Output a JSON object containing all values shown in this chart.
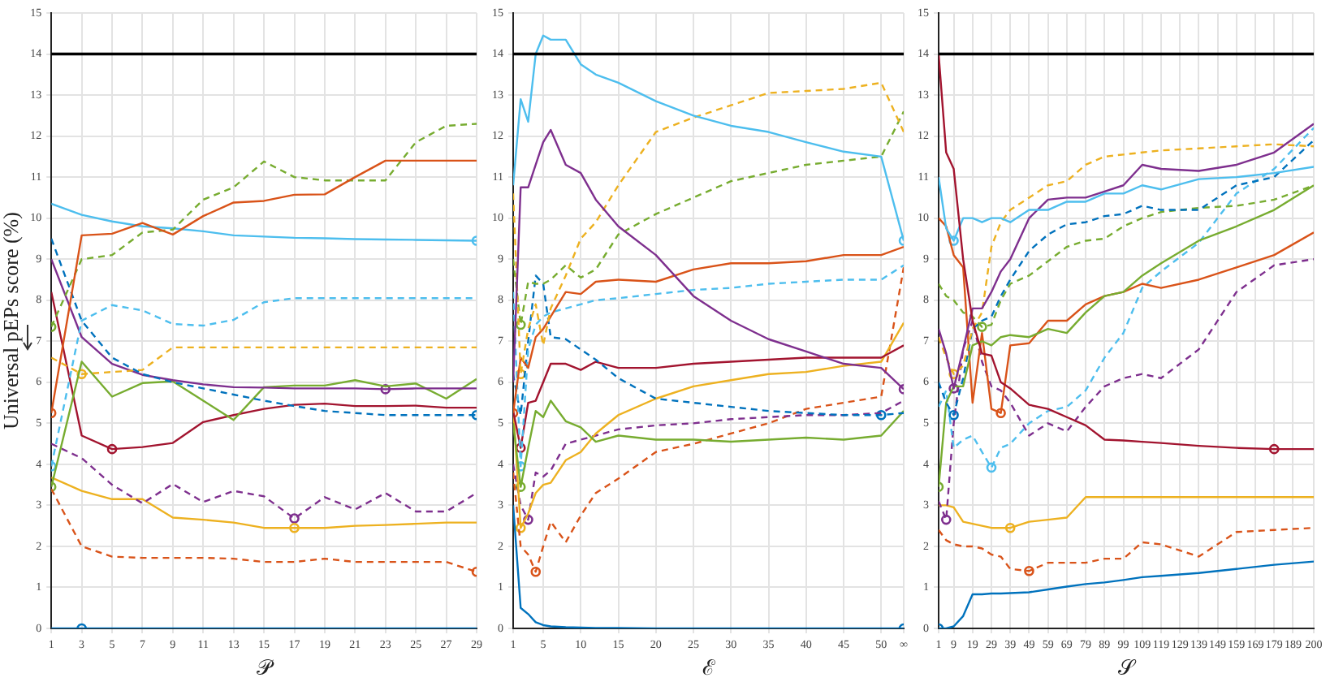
{
  "chart_data": [
    {
      "type": "line",
      "xlabel": "𝒫",
      "ylabel": "Universal pEPs score (%)",
      "xlim": [
        1,
        29
      ],
      "xticks": [
        1,
        3,
        5,
        7,
        9,
        11,
        13,
        15,
        17,
        19,
        21,
        23,
        25,
        27,
        29
      ],
      "ylim": [
        0,
        15
      ],
      "yticks": [
        0,
        1,
        2,
        3,
        4,
        5,
        6,
        7,
        8,
        9,
        10,
        11,
        12,
        13,
        14,
        15
      ],
      "grid": true,
      "legend": false,
      "ref_lines": [
        {
          "axis": "y",
          "value": 14,
          "color": "#000000"
        }
      ],
      "series": [
        {
          "color": "#0072bd",
          "line_style": "solid",
          "x": [
            1,
            3,
            5,
            7,
            9,
            11,
            13,
            15,
            17,
            19,
            21,
            23,
            25,
            27,
            29
          ],
          "values": [
            0,
            0,
            0,
            0,
            0,
            0,
            0,
            0,
            0,
            0,
            0,
            0,
            0,
            0,
            0
          ]
        },
        {
          "color": "#d95319",
          "line_style": "solid",
          "x": [
            1,
            3,
            5,
            7,
            9,
            11,
            13,
            15,
            17,
            19,
            21,
            23,
            25,
            27,
            29
          ],
          "values": [
            5.25,
            9.58,
            9.62,
            9.88,
            9.6,
            10.05,
            10.38,
            10.42,
            10.57,
            10.58,
            11,
            11.4,
            11.4,
            11.4,
            11.4
          ]
        },
        {
          "color": "#77ac30",
          "line_style": "dashed",
          "x": [
            1,
            3,
            5,
            7,
            9,
            11,
            13,
            15,
            17,
            19,
            21,
            23,
            25,
            27,
            29
          ],
          "values": [
            7.35,
            9.0,
            9.1,
            9.65,
            9.72,
            10.45,
            10.75,
            11.38,
            11.0,
            10.92,
            10.92,
            10.92,
            11.85,
            12.25,
            12.3
          ]
        },
        {
          "color": "#4dbeee",
          "line_style": "solid",
          "x": [
            1,
            3,
            5,
            7,
            9,
            11,
            13,
            15,
            17,
            19,
            21,
            23,
            25,
            27,
            29
          ],
          "values": [
            10.35,
            10.08,
            9.92,
            9.8,
            9.75,
            9.68,
            9.58,
            9.55,
            9.52,
            9.51,
            9.49,
            9.48,
            9.47,
            9.46,
            9.45
          ]
        },
        {
          "color": "#0072bd",
          "line_style": "dashed",
          "x": [
            1,
            3,
            5,
            7,
            9,
            11,
            13,
            15,
            17,
            19,
            21,
            23,
            25,
            27,
            29
          ],
          "values": [
            9.5,
            7.5,
            6.6,
            6.2,
            6.0,
            5.85,
            5.7,
            5.55,
            5.42,
            5.3,
            5.25,
            5.2,
            5.2,
            5.2,
            5.2
          ]
        },
        {
          "color": "#4dbeee",
          "line_style": "dashed",
          "x": [
            1,
            3,
            5,
            7,
            9,
            11,
            13,
            15,
            17,
            19,
            21,
            23,
            25,
            27,
            29
          ],
          "values": [
            3.95,
            7.5,
            7.88,
            7.75,
            7.42,
            7.38,
            7.52,
            7.95,
            8.05,
            8.05,
            8.05,
            8.05,
            8.05,
            8.05,
            8.05
          ]
        },
        {
          "color": "#edb120",
          "line_style": "dashed",
          "x": [
            1,
            3,
            5,
            7,
            9,
            11,
            13,
            15,
            17,
            19,
            21,
            23,
            25,
            27,
            29
          ],
          "values": [
            6.6,
            6.2,
            6.25,
            6.3,
            6.85,
            6.85,
            6.85,
            6.85,
            6.85,
            6.85,
            6.85,
            6.85,
            6.85,
            6.85,
            6.85
          ]
        },
        {
          "color": "#7e2f8e",
          "line_style": "solid",
          "x": [
            1,
            3,
            5,
            7,
            9,
            11,
            13,
            15,
            17,
            19,
            21,
            23,
            25,
            27,
            29
          ],
          "values": [
            9.0,
            7.1,
            6.45,
            6.18,
            6.05,
            5.95,
            5.88,
            5.87,
            5.85,
            5.85,
            5.85,
            5.83,
            5.85,
            5.85,
            5.85
          ]
        },
        {
          "color": "#77ac30",
          "line_style": "solid",
          "x": [
            1,
            3,
            5,
            7,
            9,
            11,
            13,
            15,
            17,
            19,
            21,
            23,
            25,
            27,
            29
          ],
          "values": [
            3.45,
            6.5,
            5.65,
            5.98,
            6.02,
            5.55,
            5.08,
            5.88,
            5.92,
            5.92,
            6.05,
            5.9,
            5.97,
            5.6,
            6.08
          ]
        },
        {
          "color": "#a2142f",
          "line_style": "solid",
          "x": [
            1,
            3,
            5,
            7,
            9,
            11,
            13,
            15,
            17,
            19,
            21,
            23,
            25,
            27,
            29
          ],
          "values": [
            8.2,
            4.7,
            4.37,
            4.42,
            4.52,
            5.03,
            5.2,
            5.35,
            5.45,
            5.48,
            5.42,
            5.42,
            5.43,
            5.38,
            5.38
          ]
        },
        {
          "color": "#7e2f8e",
          "line_style": "dashed",
          "x": [
            1,
            3,
            5,
            7,
            9,
            11,
            13,
            15,
            17,
            19,
            21,
            23,
            25,
            27,
            29
          ],
          "values": [
            4.5,
            4.15,
            3.5,
            3.05,
            3.52,
            3.08,
            3.35,
            3.22,
            2.68,
            3.2,
            2.9,
            3.3,
            2.85,
            2.85,
            3.3
          ]
        },
        {
          "color": "#edb120",
          "line_style": "solid",
          "x": [
            1,
            3,
            5,
            7,
            9,
            11,
            13,
            15,
            17,
            19,
            21,
            23,
            25,
            27,
            29
          ],
          "values": [
            3.68,
            3.35,
            3.15,
            3.15,
            2.7,
            2.65,
            2.58,
            2.45,
            2.45,
            2.45,
            2.5,
            2.52,
            2.55,
            2.58,
            2.58
          ]
        },
        {
          "color": "#d95319",
          "line_style": "dashed",
          "x": [
            1,
            3,
            5,
            7,
            9,
            11,
            13,
            15,
            17,
            19,
            21,
            23,
            25,
            27,
            29
          ],
          "values": [
            3.4,
            2.0,
            1.75,
            1.72,
            1.72,
            1.72,
            1.7,
            1.62,
            1.62,
            1.7,
            1.62,
            1.62,
            1.62,
            1.62,
            1.38
          ]
        },
        {
          "type": "scatter",
          "marker": "circle",
          "x": [
            3,
            1,
            1,
            29,
            29,
            1,
            3,
            23,
            1,
            5,
            17,
            17,
            29
          ],
          "values": [
            0,
            5.25,
            7.35,
            9.45,
            5.2,
            3.95,
            6.2,
            5.83,
            3.45,
            4.37,
            2.68,
            2.45,
            1.38
          ],
          "colors": [
            "#0072bd",
            "#d95319",
            "#77ac30",
            "#4dbeee",
            "#0072bd",
            "#4dbeee",
            "#edb120",
            "#7e2f8e",
            "#77ac30",
            "#a2142f",
            "#7e2f8e",
            "#edb120",
            "#d95319"
          ]
        }
      ]
    },
    {
      "type": "line",
      "xlabel": "ℰ",
      "xlim": [
        1,
        53
      ],
      "xticks": [
        1,
        5,
        10,
        15,
        20,
        25,
        30,
        35,
        40,
        45,
        50,
        {
          "value": 53,
          "label": "∞"
        }
      ],
      "ylim": [
        0,
        15
      ],
      "yticks": [
        0,
        1,
        2,
        3,
        4,
        5,
        6,
        7,
        8,
        9,
        10,
        11,
        12,
        13,
        14,
        15
      ],
      "grid": true,
      "legend": false,
      "ref_lines": [
        {
          "axis": "y",
          "value": 14,
          "color": "#000000"
        }
      ],
      "series": [
        {
          "color": "#4dbeee",
          "line_style": "solid",
          "x": [
            1,
            2,
            3,
            4,
            5,
            6,
            8,
            10,
            12,
            15,
            20,
            25,
            30,
            35,
            40,
            45,
            50,
            53
          ],
          "values": [
            10.8,
            12.9,
            12.35,
            14.0,
            14.45,
            14.35,
            14.35,
            13.75,
            13.5,
            13.3,
            12.85,
            12.5,
            12.25,
            12.1,
            11.85,
            11.62,
            11.5,
            9.45
          ]
        },
        {
          "color": "#7e2f8e",
          "line_style": "solid",
          "x": [
            1,
            2,
            3,
            4,
            5,
            6,
            8,
            10,
            12,
            15,
            20,
            25,
            30,
            35,
            40,
            45,
            50,
            53
          ],
          "values": [
            6.0,
            10.75,
            10.75,
            11.3,
            11.85,
            12.15,
            11.3,
            11.1,
            10.45,
            9.8,
            9.1,
            8.1,
            7.5,
            7.05,
            6.75,
            6.45,
            6.35,
            5.83
          ]
        },
        {
          "color": "#edb120",
          "line_style": "dashed",
          "x": [
            1,
            2,
            3,
            4,
            5,
            6,
            8,
            10,
            12,
            15,
            20,
            25,
            30,
            35,
            40,
            45,
            50,
            53
          ],
          "values": [
            10.6,
            6.2,
            7.3,
            7.9,
            6.9,
            7.8,
            8.6,
            9.5,
            9.9,
            10.8,
            12.1,
            12.45,
            12.75,
            13.05,
            13.1,
            13.15,
            13.3,
            12.1
          ]
        },
        {
          "color": "#77ac30",
          "line_style": "dashed",
          "x": [
            1,
            2,
            3,
            4,
            5,
            6,
            8,
            10,
            12,
            15,
            20,
            25,
            30,
            35,
            40,
            45,
            50,
            53
          ],
          "values": [
            9.0,
            7.4,
            8.45,
            8.4,
            8.4,
            8.5,
            8.85,
            8.55,
            8.75,
            9.6,
            10.1,
            10.5,
            10.9,
            11.1,
            11.3,
            11.4,
            11.5,
            12.6
          ]
        },
        {
          "color": "#d95319",
          "line_style": "solid",
          "x": [
            1,
            2,
            3,
            4,
            5,
            6,
            8,
            10,
            12,
            15,
            20,
            25,
            30,
            35,
            40,
            45,
            50,
            53
          ],
          "values": [
            5.25,
            6.6,
            6.35,
            7.1,
            7.3,
            7.6,
            8.2,
            8.15,
            8.45,
            8.5,
            8.45,
            8.75,
            8.9,
            8.9,
            8.95,
            9.1,
            9.1,
            9.3
          ]
        },
        {
          "color": "#4dbeee",
          "line_style": "dashed",
          "x": [
            1,
            2,
            3,
            4,
            5,
            6,
            8,
            10,
            12,
            15,
            20,
            25,
            30,
            35,
            40,
            45,
            50,
            53
          ],
          "values": [
            8.2,
            3.95,
            6.8,
            7.4,
            7.6,
            7.7,
            7.8,
            7.9,
            8.0,
            8.05,
            8.15,
            8.25,
            8.3,
            8.4,
            8.45,
            8.5,
            8.5,
            8.85
          ]
        },
        {
          "color": "#0072bd",
          "line_style": "dashed",
          "x": [
            1,
            2,
            3,
            4,
            5,
            6,
            8,
            10,
            12,
            15,
            20,
            25,
            30,
            35,
            40,
            45,
            50,
            53
          ],
          "values": [
            6.2,
            5.2,
            7.0,
            8.6,
            8.4,
            7.1,
            7.05,
            6.8,
            6.55,
            6.1,
            5.6,
            5.5,
            5.4,
            5.3,
            5.25,
            5.2,
            5.2,
            5.25
          ]
        },
        {
          "color": "#a2142f",
          "line_style": "solid",
          "x": [
            1,
            2,
            3,
            4,
            5,
            6,
            8,
            10,
            12,
            15,
            20,
            25,
            30,
            35,
            40,
            45,
            50,
            53
          ],
          "values": [
            5.3,
            4.4,
            5.5,
            5.55,
            6.0,
            6.45,
            6.45,
            6.3,
            6.5,
            6.35,
            6.35,
            6.45,
            6.5,
            6.55,
            6.6,
            6.6,
            6.6,
            6.9
          ]
        },
        {
          "color": "#77ac30",
          "line_style": "solid",
          "x": [
            1,
            2,
            3,
            4,
            5,
            6,
            8,
            10,
            12,
            15,
            20,
            25,
            30,
            35,
            40,
            45,
            50,
            53
          ],
          "values": [
            5.0,
            3.45,
            4.4,
            5.3,
            5.15,
            5.55,
            5.05,
            4.9,
            4.55,
            4.7,
            4.6,
            4.6,
            4.55,
            4.6,
            4.65,
            4.6,
            4.7,
            5.3
          ]
        },
        {
          "color": "#edb120",
          "line_style": "solid",
          "x": [
            1,
            2,
            3,
            4,
            5,
            6,
            8,
            10,
            12,
            15,
            20,
            25,
            30,
            35,
            40,
            45,
            50,
            53
          ],
          "values": [
            5.4,
            2.45,
            2.8,
            3.3,
            3.5,
            3.55,
            4.1,
            4.3,
            4.75,
            5.2,
            5.6,
            5.9,
            6.05,
            6.2,
            6.25,
            6.4,
            6.5,
            7.45
          ]
        },
        {
          "color": "#7e2f8e",
          "line_style": "dashed",
          "x": [
            1,
            2,
            3,
            4,
            5,
            6,
            8,
            10,
            12,
            15,
            20,
            25,
            30,
            35,
            40,
            45,
            50,
            53
          ],
          "values": [
            4.0,
            3.0,
            2.65,
            3.8,
            3.7,
            3.85,
            4.5,
            4.6,
            4.7,
            4.85,
            4.95,
            5.0,
            5.1,
            5.15,
            5.2,
            5.2,
            5.25,
            5.55
          ]
        },
        {
          "color": "#d95319",
          "line_style": "dashed",
          "x": [
            1,
            2,
            3,
            4,
            5,
            6,
            8,
            10,
            12,
            15,
            20,
            25,
            30,
            35,
            40,
            45,
            50,
            53
          ],
          "values": [
            3.8,
            2.0,
            1.8,
            1.38,
            2.0,
            2.6,
            2.1,
            2.75,
            3.3,
            3.65,
            4.3,
            4.5,
            4.75,
            5.0,
            5.35,
            5.5,
            5.65,
            8.8
          ]
        },
        {
          "color": "#0072bd",
          "line_style": "solid",
          "x": [
            1,
            2,
            3,
            4,
            5,
            6,
            8,
            10,
            12,
            15,
            20,
            25,
            30,
            35,
            40,
            45,
            50,
            53
          ],
          "values": [
            3.0,
            0.5,
            0.35,
            0.15,
            0.08,
            0.05,
            0.03,
            0.02,
            0.01,
            0.01,
            0,
            0,
            0,
            0,
            0,
            0,
            0,
            0
          ]
        },
        {
          "type": "scatter",
          "marker": "circle",
          "x": [
            53,
            53,
            2,
            2,
            1,
            2,
            50,
            2,
            2,
            2,
            3,
            4,
            53
          ],
          "values": [
            9.45,
            5.83,
            6.2,
            7.4,
            5.25,
            3.95,
            5.2,
            4.4,
            3.45,
            2.45,
            2.65,
            1.38,
            0
          ],
          "colors": [
            "#4dbeee",
            "#7e2f8e",
            "#edb120",
            "#77ac30",
            "#d95319",
            "#4dbeee",
            "#0072bd",
            "#a2142f",
            "#77ac30",
            "#edb120",
            "#7e2f8e",
            "#d95319",
            "#0072bd"
          ]
        }
      ]
    },
    {
      "type": "line",
      "xlabel": "𝒮",
      "xlim": [
        1,
        200
      ],
      "xticks": [
        1,
        9,
        19,
        29,
        39,
        49,
        59,
        69,
        79,
        89,
        99,
        109,
        119,
        129,
        139,
        149,
        159,
        169,
        179,
        189,
        200
      ],
      "ylim": [
        0,
        15
      ],
      "yticks": [
        0,
        1,
        2,
        3,
        4,
        5,
        6,
        7,
        8,
        9,
        10,
        11,
        12,
        13,
        14,
        15
      ],
      "grid": true,
      "legend": false,
      "ref_lines": [
        {
          "axis": "y",
          "value": 14,
          "color": "#000000"
        }
      ],
      "series": [
        {
          "color": "#a2142f",
          "line_style": "solid",
          "x": [
            1,
            5,
            9,
            14,
            19,
            24,
            29,
            34,
            39,
            49,
            59,
            69,
            79,
            89,
            99,
            109,
            119,
            139,
            159,
            179,
            200
          ],
          "values": [
            14.0,
            11.6,
            11.2,
            9.0,
            7.5,
            6.7,
            6.65,
            6.0,
            5.85,
            5.45,
            5.35,
            5.15,
            4.95,
            4.6,
            4.58,
            4.55,
            4.52,
            4.45,
            4.4,
            4.37,
            4.37
          ]
        },
        {
          "color": "#4dbeee",
          "line_style": "solid",
          "x": [
            1,
            5,
            9,
            14,
            19,
            24,
            29,
            34,
            39,
            49,
            59,
            69,
            79,
            89,
            99,
            109,
            119,
            139,
            159,
            179,
            200
          ],
          "values": [
            11.0,
            9.75,
            9.45,
            10.0,
            10.0,
            9.9,
            10.0,
            10.0,
            9.9,
            10.2,
            10.2,
            10.4,
            10.4,
            10.6,
            10.6,
            10.8,
            10.7,
            10.95,
            11.0,
            11.1,
            11.25
          ]
        },
        {
          "color": "#7e2f8e",
          "line_style": "solid",
          "x": [
            1,
            5,
            9,
            14,
            19,
            24,
            29,
            34,
            39,
            49,
            59,
            69,
            79,
            89,
            99,
            109,
            119,
            139,
            159,
            179,
            200
          ],
          "values": [
            7.3,
            6.7,
            5.85,
            6.8,
            7.8,
            7.8,
            8.2,
            8.7,
            9.0,
            10.0,
            10.45,
            10.5,
            10.5,
            10.65,
            10.8,
            11.3,
            11.2,
            11.15,
            11.3,
            11.6,
            12.3
          ]
        },
        {
          "color": "#edb120",
          "line_style": "dashed",
          "x": [
            1,
            5,
            9,
            14,
            19,
            24,
            29,
            34,
            39,
            49,
            59,
            69,
            79,
            89,
            99,
            109,
            119,
            139,
            159,
            179,
            200
          ],
          "values": [
            7.1,
            6.6,
            6.2,
            6.4,
            7.3,
            7.7,
            9.3,
            9.9,
            10.2,
            10.5,
            10.8,
            10.9,
            11.3,
            11.5,
            11.55,
            11.6,
            11.65,
            11.7,
            11.75,
            11.8,
            11.75
          ]
        },
        {
          "color": "#0072bd",
          "line_style": "dashed",
          "x": [
            1,
            5,
            9,
            14,
            19,
            24,
            29,
            34,
            39,
            49,
            59,
            69,
            79,
            89,
            99,
            109,
            119,
            139,
            159,
            179,
            200
          ],
          "values": [
            6.0,
            5.5,
            5.2,
            6.1,
            7.3,
            7.5,
            7.6,
            8.1,
            8.5,
            9.2,
            9.6,
            9.85,
            9.9,
            10.05,
            10.1,
            10.3,
            10.2,
            10.2,
            10.8,
            11.0,
            11.9
          ]
        },
        {
          "color": "#77ac30",
          "line_style": "dashed",
          "x": [
            1,
            5,
            9,
            14,
            19,
            24,
            29,
            34,
            39,
            49,
            59,
            69,
            79,
            89,
            99,
            109,
            119,
            139,
            159,
            179,
            200
          ],
          "values": [
            8.4,
            8.1,
            8.0,
            7.7,
            7.6,
            7.35,
            7.4,
            8.0,
            8.4,
            8.6,
            8.95,
            9.3,
            9.45,
            9.5,
            9.8,
            10.0,
            10.15,
            10.25,
            10.3,
            10.45,
            10.8
          ]
        },
        {
          "color": "#77ac30",
          "line_style": "solid",
          "x": [
            1,
            5,
            9,
            14,
            19,
            24,
            29,
            34,
            39,
            49,
            59,
            69,
            79,
            89,
            99,
            109,
            119,
            139,
            159,
            179,
            200
          ],
          "values": [
            3.45,
            5.5,
            5.9,
            5.9,
            6.9,
            7.0,
            6.9,
            7.1,
            7.15,
            7.1,
            7.3,
            7.2,
            7.7,
            8.1,
            8.2,
            8.6,
            8.9,
            9.45,
            9.8,
            10.2,
            10.8
          ]
        },
        {
          "color": "#d95319",
          "line_style": "solid",
          "x": [
            1,
            5,
            9,
            14,
            19,
            24,
            29,
            34,
            39,
            49,
            59,
            69,
            79,
            89,
            99,
            109,
            119,
            139,
            159,
            179,
            200
          ],
          "values": [
            10.0,
            9.8,
            9.1,
            8.8,
            5.5,
            7.2,
            5.35,
            5.25,
            6.9,
            6.95,
            7.5,
            7.5,
            7.9,
            8.1,
            8.2,
            8.4,
            8.3,
            8.5,
            8.8,
            9.1,
            9.65
          ]
        },
        {
          "color": "#4dbeee",
          "line_style": "dashed",
          "x": [
            1,
            5,
            9,
            14,
            19,
            24,
            29,
            34,
            39,
            49,
            59,
            69,
            79,
            89,
            99,
            109,
            119,
            139,
            159,
            179,
            200
          ],
          "values": [
            5.4,
            5.8,
            4.4,
            4.6,
            4.7,
            4.3,
            3.92,
            4.4,
            4.5,
            5.0,
            5.3,
            5.4,
            5.8,
            6.6,
            7.2,
            8.3,
            8.7,
            9.4,
            10.6,
            11.2,
            12.2
          ]
        },
        {
          "color": "#7e2f8e",
          "line_style": "dashed",
          "x": [
            1,
            5,
            9,
            14,
            19,
            24,
            29,
            34,
            39,
            49,
            59,
            69,
            79,
            89,
            99,
            109,
            119,
            139,
            159,
            179,
            200
          ],
          "values": [
            3.1,
            2.65,
            5.0,
            6.8,
            7.5,
            6.5,
            5.9,
            5.8,
            5.5,
            4.7,
            5.0,
            4.8,
            5.4,
            5.9,
            6.1,
            6.2,
            6.1,
            6.8,
            8.2,
            8.85,
            9.0
          ]
        },
        {
          "color": "#edb120",
          "line_style": "solid",
          "x": [
            1,
            5,
            9,
            14,
            19,
            24,
            29,
            34,
            39,
            49,
            59,
            69,
            79,
            89,
            99,
            109,
            119,
            139,
            159,
            179,
            200
          ],
          "values": [
            3.0,
            3.0,
            2.95,
            2.6,
            2.55,
            2.5,
            2.45,
            2.45,
            2.45,
            2.6,
            2.65,
            2.7,
            3.2,
            3.2,
            3.2,
            3.2,
            3.2,
            3.2,
            3.2,
            3.2,
            3.2
          ]
        },
        {
          "color": "#d95319",
          "line_style": "dashed",
          "x": [
            1,
            5,
            9,
            14,
            19,
            24,
            29,
            34,
            39,
            49,
            59,
            69,
            79,
            89,
            99,
            109,
            119,
            139,
            159,
            179,
            200
          ],
          "values": [
            2.4,
            2.15,
            2.05,
            2.0,
            2.0,
            1.95,
            1.8,
            1.75,
            1.45,
            1.4,
            1.6,
            1.6,
            1.6,
            1.7,
            1.7,
            2.1,
            2.05,
            1.75,
            2.35,
            2.4,
            2.45
          ]
        },
        {
          "color": "#0072bd",
          "line_style": "solid",
          "x": [
            1,
            5,
            9,
            14,
            19,
            24,
            29,
            34,
            39,
            49,
            59,
            69,
            79,
            89,
            99,
            109,
            119,
            139,
            159,
            179,
            200
          ],
          "values": [
            0,
            0,
            0.05,
            0.3,
            0.83,
            0.83,
            0.85,
            0.85,
            0.86,
            0.88,
            0.95,
            1.02,
            1.08,
            1.12,
            1.18,
            1.25,
            1.28,
            1.35,
            1.45,
            1.55,
            1.63
          ]
        },
        {
          "type": "scatter",
          "marker": "circle",
          "x": [
            179,
            9,
            9,
            9,
            9,
            24,
            1,
            34,
            29,
            5,
            39,
            49,
            1
          ],
          "values": [
            4.37,
            9.45,
            5.85,
            6.2,
            5.2,
            7.35,
            3.45,
            5.25,
            3.92,
            2.65,
            2.45,
            1.4,
            0
          ],
          "colors": [
            "#a2142f",
            "#4dbeee",
            "#7e2f8e",
            "#edb120",
            "#0072bd",
            "#77ac30",
            "#77ac30",
            "#d95319",
            "#4dbeee",
            "#7e2f8e",
            "#edb120",
            "#d95319",
            "#0072bd"
          ]
        }
      ]
    }
  ]
}
